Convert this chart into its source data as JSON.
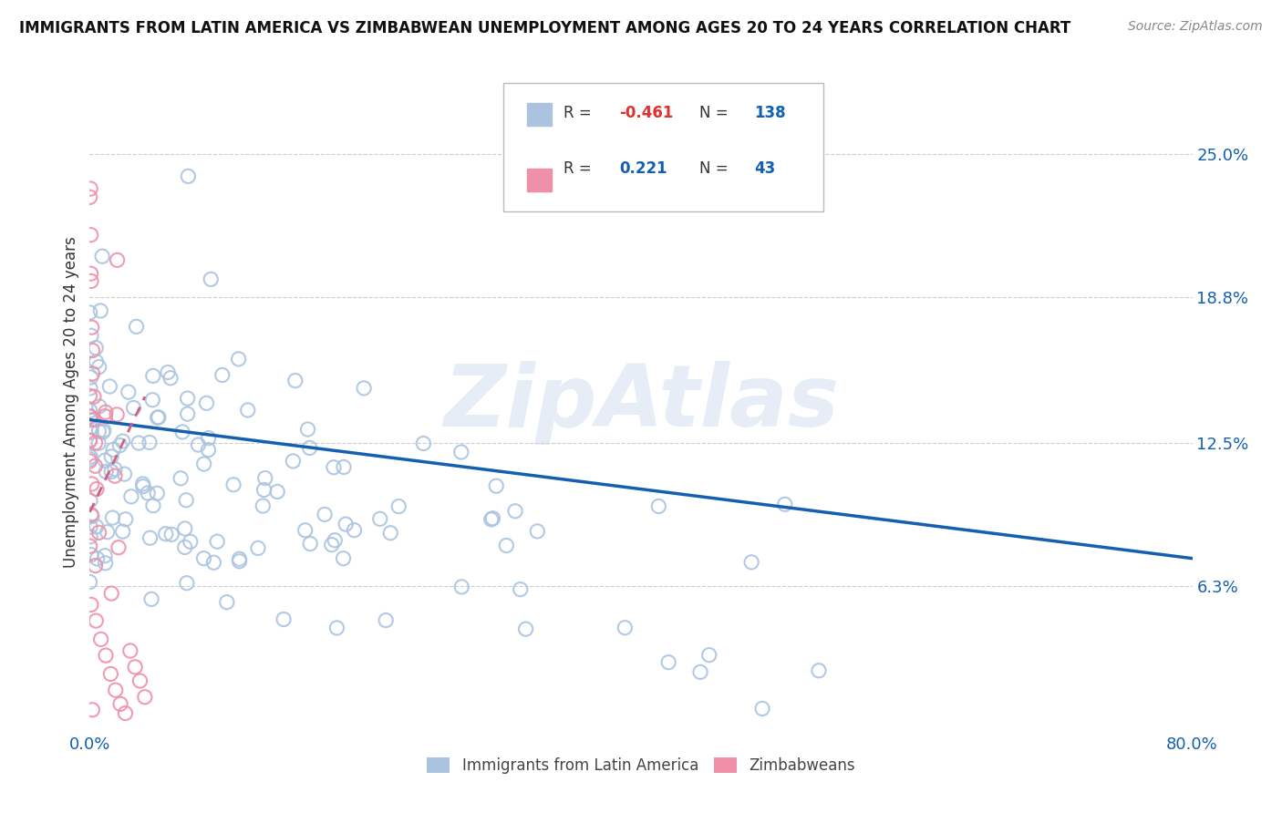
{
  "title": "IMMIGRANTS FROM LATIN AMERICA VS ZIMBABWEAN UNEMPLOYMENT AMONG AGES 20 TO 24 YEARS CORRELATION CHART",
  "source": "Source: ZipAtlas.com",
  "ylabel": "Unemployment Among Ages 20 to 24 years",
  "legend_labels": [
    "Immigrants from Latin America",
    "Zimbabweans"
  ],
  "blue_R": "-0.461",
  "blue_N": "138",
  "pink_R": "0.221",
  "pink_N": "43",
  "blue_color": "#aac4e0",
  "blue_line_color": "#1460b0",
  "pink_color": "#f090a8",
  "pink_line_color": "#d06080",
  "watermark": "ZipAtlas",
  "title_fontsize": 12,
  "axis_label_color": "#1460b0",
  "text_color": "#333333",
  "grid_color": "#cccccc",
  "y_ticks": [
    0.063,
    0.125,
    0.188,
    0.25
  ],
  "y_tick_labels": [
    "6.3%",
    "12.5%",
    "18.8%",
    "25.0%"
  ],
  "x_ticks": [
    0.0,
    0.8
  ],
  "x_tick_labels": [
    "0.0%",
    "80.0%"
  ],
  "xlim": [
    0.0,
    0.8
  ],
  "ylim": [
    0.0,
    0.285
  ],
  "blue_trend_x0": 0.0,
  "blue_trend_x1": 0.8,
  "blue_trend_y0": 0.135,
  "blue_trend_y1": 0.075,
  "pink_trend_x0": 0.0,
  "pink_trend_x1": 0.04,
  "pink_trend_y0": 0.095,
  "pink_trend_y1": 0.145
}
